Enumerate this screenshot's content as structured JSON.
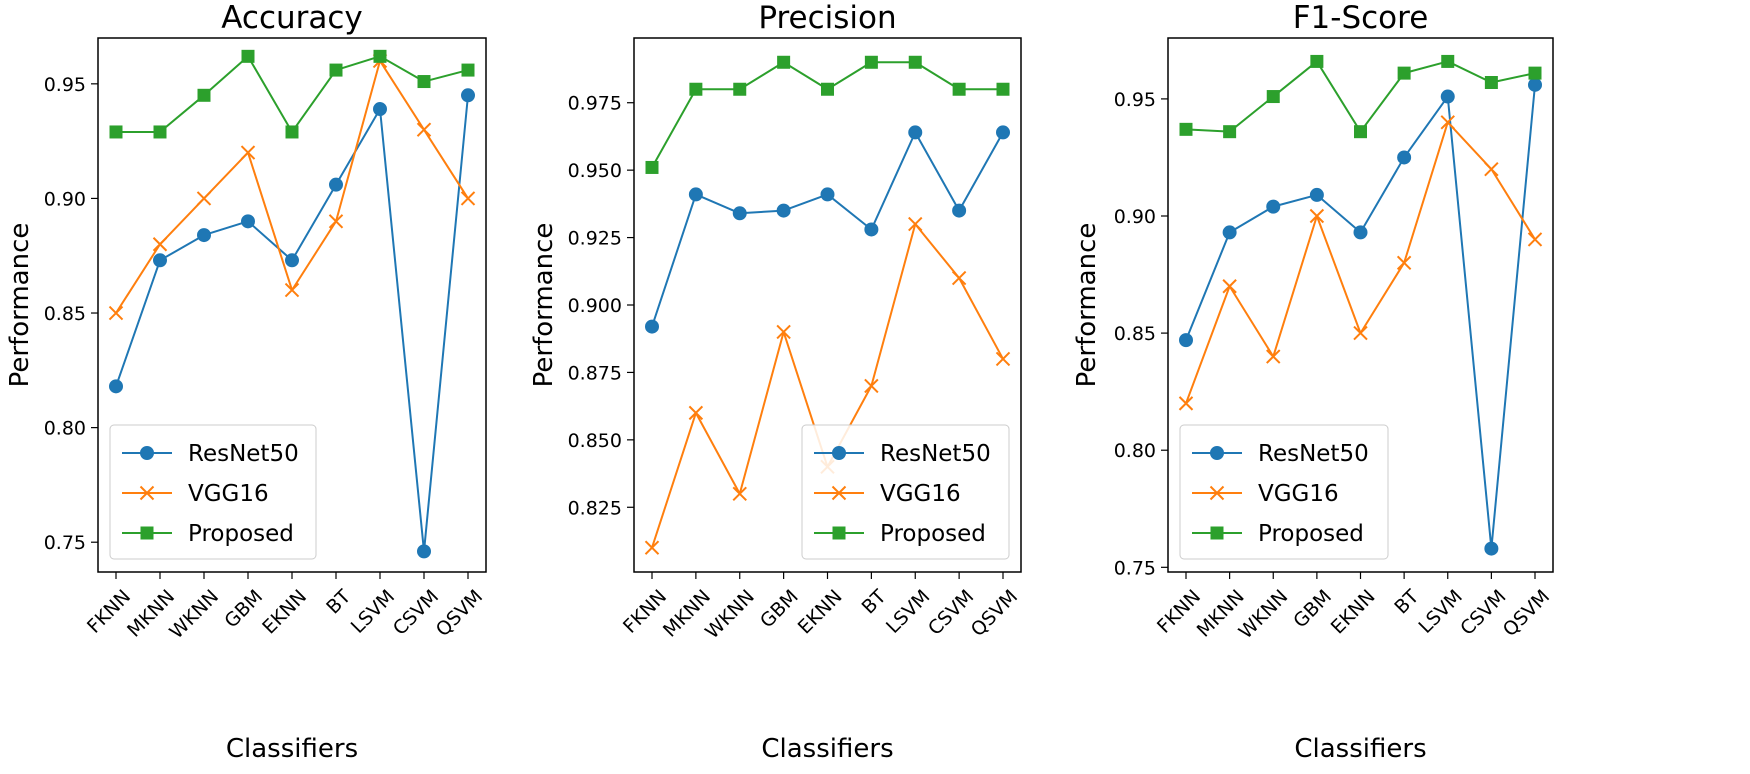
{
  "chart_data": [
    {
      "type": "line",
      "title": "Accuracy",
      "xlabel": "Classifiers",
      "ylabel": "Performance",
      "categories": [
        "FKNN",
        "MKNN",
        "WKNN",
        "GBM",
        "EKNN",
        "BT",
        "LSVM",
        "CSVM",
        "QSVM"
      ],
      "ylim": [
        0.737,
        0.97
      ],
      "yticks": [
        0.75,
        0.8,
        0.85,
        0.9,
        0.95
      ],
      "ytick_labels": [
        "0.75",
        "0.80",
        "0.85",
        "0.90",
        "0.95"
      ],
      "legend_position": "lower-left",
      "series": [
        {
          "name": "ResNet50",
          "color": "#1f77b4",
          "marker": "circle",
          "values": [
            0.818,
            0.873,
            0.884,
            0.89,
            0.873,
            0.906,
            0.939,
            0.746,
            0.945
          ]
        },
        {
          "name": "VGG16",
          "color": "#ff7f0e",
          "marker": "x",
          "values": [
            0.85,
            0.88,
            0.9,
            0.92,
            0.86,
            0.89,
            0.96,
            0.93,
            0.9
          ]
        },
        {
          "name": "Proposed",
          "color": "#2ca02c",
          "marker": "square",
          "values": [
            0.929,
            0.929,
            0.945,
            0.962,
            0.929,
            0.956,
            0.962,
            0.951,
            0.956
          ]
        }
      ]
    },
    {
      "type": "line",
      "title": "Precision",
      "xlabel": "Classifiers",
      "ylabel": "Performance",
      "categories": [
        "FKNN",
        "MKNN",
        "WKNN",
        "GBM",
        "EKNN",
        "BT",
        "LSVM",
        "CSVM",
        "QSVM"
      ],
      "ylim": [
        0.801,
        0.999
      ],
      "yticks": [
        0.825,
        0.85,
        0.875,
        0.9,
        0.925,
        0.95,
        0.975
      ],
      "ytick_labels": [
        "0.825",
        "0.850",
        "0.875",
        "0.900",
        "0.925",
        "0.950",
        "0.975"
      ],
      "legend_position": "lower-right",
      "series": [
        {
          "name": "ResNet50",
          "color": "#1f77b4",
          "marker": "circle",
          "values": [
            0.892,
            0.941,
            0.934,
            0.935,
            0.941,
            0.928,
            0.964,
            0.935,
            0.964
          ]
        },
        {
          "name": "VGG16",
          "color": "#ff7f0e",
          "marker": "x",
          "values": [
            0.81,
            0.86,
            0.83,
            0.89,
            0.84,
            0.87,
            0.93,
            0.91,
            0.88
          ]
        },
        {
          "name": "Proposed",
          "color": "#2ca02c",
          "marker": "square",
          "values": [
            0.951,
            0.98,
            0.98,
            0.99,
            0.98,
            0.99,
            0.99,
            0.98,
            0.98
          ]
        }
      ]
    },
    {
      "type": "line",
      "title": "F1-Score",
      "xlabel": "Classifiers",
      "ylabel": "Performance",
      "categories": [
        "FKNN",
        "MKNN",
        "WKNN",
        "GBM",
        "EKNN",
        "BT",
        "LSVM",
        "CSVM",
        "QSVM"
      ],
      "ylim": [
        0.748,
        0.976
      ],
      "yticks": [
        0.75,
        0.8,
        0.85,
        0.9,
        0.95
      ],
      "ytick_labels": [
        "0.75",
        "0.80",
        "0.85",
        "0.90",
        "0.95"
      ],
      "legend_position": "lower-left",
      "series": [
        {
          "name": "ResNet50",
          "color": "#1f77b4",
          "marker": "circle",
          "values": [
            0.847,
            0.893,
            0.904,
            0.909,
            0.893,
            0.925,
            0.951,
            0.758,
            0.956
          ]
        },
        {
          "name": "VGG16",
          "color": "#ff7f0e",
          "marker": "x",
          "values": [
            0.82,
            0.87,
            0.84,
            0.9,
            0.85,
            0.88,
            0.94,
            0.92,
            0.89
          ]
        },
        {
          "name": "Proposed",
          "color": "#2ca02c",
          "marker": "square",
          "values": [
            0.937,
            0.936,
            0.951,
            0.966,
            0.936,
            0.961,
            0.966,
            0.957,
            0.961
          ]
        }
      ]
    }
  ]
}
